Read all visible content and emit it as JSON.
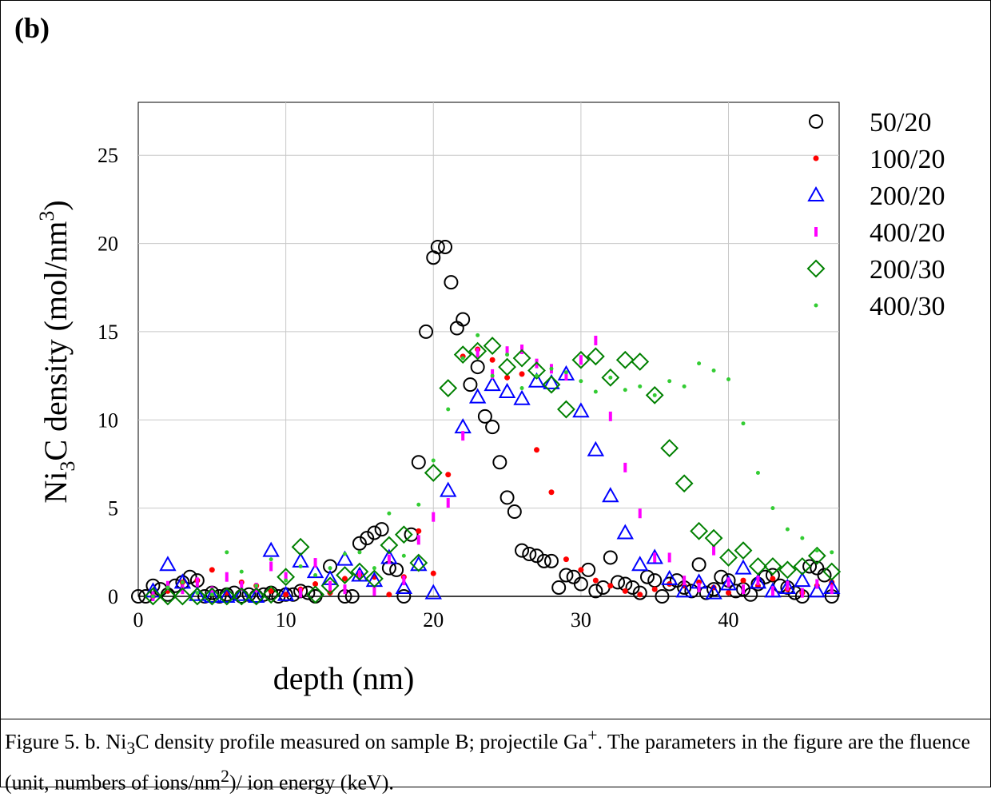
{
  "panel_label": "(b)",
  "chart_data": {
    "type": "scatter",
    "x_label": "depth (nm)",
    "y_label_parts": [
      "Ni",
      "3",
      "C density (mol/nm",
      "3",
      ")"
    ],
    "xlim": [
      0,
      47.5
    ],
    "ylim": [
      0,
      28
    ],
    "xticks": [
      0,
      10,
      20,
      30,
      40
    ],
    "yticks": [
      0,
      5,
      10,
      15,
      20,
      25
    ],
    "grid": true,
    "legend": "right",
    "series": [
      {
        "name": "50/20",
        "color": "#000000",
        "marker": "circle",
        "x": [
          0,
          0.5,
          1,
          1.5,
          2,
          2.5,
          3,
          3.5,
          4,
          4.5,
          5,
          5.5,
          6,
          6.5,
          7,
          7.5,
          8,
          8.5,
          9,
          9.5,
          10,
          10.5,
          11,
          11.5,
          12,
          13,
          14,
          14.5,
          15,
          15.5,
          16,
          16.5,
          17,
          17.5,
          18,
          18.5,
          19,
          19.5,
          20,
          20.3,
          20.8,
          21.2,
          21.6,
          22,
          22.5,
          23,
          23.5,
          24,
          24.5,
          25,
          25.5,
          26,
          26.5,
          27,
          27.5,
          28,
          28.5,
          29,
          29.5,
          30,
          30.5,
          31,
          31.5,
          32,
          32.5,
          33,
          33.5,
          34,
          34.5,
          35,
          35.5,
          36,
          36.5,
          37,
          37.5,
          38,
          38.5,
          39,
          39.5,
          40,
          40.5,
          41,
          41.5,
          42,
          42.5,
          43,
          43.5,
          44,
          44.5,
          45,
          45.5,
          46,
          46.5,
          47
        ],
        "values": [
          0,
          0,
          0.6,
          0.4,
          0.1,
          0.6,
          0.8,
          1.1,
          0.9,
          0,
          0.2,
          0,
          0.1,
          0.2,
          0,
          0.1,
          0,
          0.1,
          0.2,
          0,
          0.1,
          0.1,
          0.3,
          0.2,
          0,
          1.7,
          0,
          0,
          3,
          3.3,
          3.6,
          3.8,
          1.6,
          1.5,
          0,
          3.5,
          7.6,
          15,
          19.2,
          19.8,
          19.8,
          17.8,
          15.2,
          15.7,
          12,
          13,
          10.2,
          9.6,
          7.6,
          5.6,
          4.8,
          2.6,
          2.4,
          2.3,
          2,
          2,
          0.5,
          1.2,
          1.1,
          0.7,
          1.5,
          0.3,
          0.5,
          2.2,
          0.8,
          0.7,
          0.5,
          0.2,
          1.1,
          0.9,
          0,
          0.7,
          0.9,
          0.5,
          0.3,
          1.8,
          0.2,
          0.4,
          1.1,
          0.9,
          0.3,
          0.4,
          0.1,
          0.7,
          1.1,
          1.2,
          0.6,
          0.5,
          0.2,
          0,
          1.7,
          1.6,
          1.2,
          0
        ]
      },
      {
        "name": "100/20",
        "color": "#ff0000",
        "marker": "dot",
        "x": [
          1,
          2,
          3,
          4,
          5,
          6,
          7,
          8,
          9,
          10,
          11,
          12,
          13,
          14,
          15,
          16,
          17,
          18,
          19,
          20,
          21,
          22,
          23,
          24,
          25,
          26,
          27,
          28,
          29,
          30,
          31,
          32,
          33,
          34,
          35,
          36,
          37,
          38,
          39,
          40,
          41,
          42,
          43,
          44,
          45,
          46,
          47
        ],
        "values": [
          0,
          0.3,
          0.8,
          0.9,
          1.5,
          0.2,
          0.8,
          0.6,
          0.3,
          0.1,
          0.4,
          0.7,
          0.2,
          1.0,
          1.2,
          1.1,
          0.1,
          1.1,
          3.7,
          1.3,
          6.9,
          13.6,
          14.0,
          13.4,
          12.4,
          12.6,
          8.3,
          5.9,
          2.1,
          1.5,
          0.9,
          0.6,
          0.3,
          0.1,
          0.4,
          0.7,
          0.6,
          0.8,
          0.5,
          0.2,
          0.9,
          0.6,
          1.0,
          0.4,
          0.2,
          0.6,
          0.8
        ]
      },
      {
        "name": "200/20",
        "color": "#0000ff",
        "marker": "triangle",
        "x": [
          1,
          2,
          3,
          4,
          5,
          6,
          7,
          8,
          9,
          10,
          11,
          12,
          13,
          14,
          15,
          16,
          17,
          18,
          19,
          20,
          21,
          22,
          23,
          24,
          25,
          26,
          27,
          28,
          29,
          30,
          31,
          32,
          33,
          34,
          35,
          36,
          37,
          38,
          39,
          40,
          41,
          42,
          43,
          44,
          45,
          46,
          47
        ],
        "values": [
          0.3,
          1.8,
          0.8,
          0.1,
          0,
          0,
          0.1,
          0,
          2.6,
          0.1,
          2.0,
          1.4,
          1.0,
          2.1,
          1.2,
          0.9,
          2.2,
          0.5,
          1.8,
          0.2,
          6.0,
          9.6,
          11.3,
          12,
          11.6,
          11.2,
          12.2,
          12.1,
          12.6,
          10.5,
          8.3,
          5.7,
          3.6,
          1.8,
          2.2,
          1.0,
          0.3,
          0.8,
          0.2,
          0.7,
          1.6,
          0.8,
          0.3,
          0.5,
          0.9,
          0.3,
          0.5
        ]
      },
      {
        "name": "400/20",
        "color": "#ff00ff",
        "marker": "dash",
        "x": [
          1,
          2,
          3,
          4,
          5,
          6,
          7,
          8,
          9,
          10,
          11,
          12,
          13,
          14,
          15,
          16,
          17,
          18,
          19,
          20,
          21,
          22,
          23,
          24,
          25,
          26,
          27,
          28,
          29,
          30,
          31,
          32,
          33,
          34,
          35,
          36,
          37,
          38,
          39,
          40,
          41,
          42,
          43,
          44,
          45,
          46,
          47
        ],
        "values": [
          0,
          0.6,
          0.4,
          0.8,
          0.3,
          1.1,
          0.6,
          0.5,
          1.7,
          1.1,
          0.2,
          1.9,
          0.6,
          0.4,
          1.2,
          0.3,
          2.1,
          0.9,
          3.2,
          4.5,
          5.3,
          9.1,
          13.8,
          12.6,
          13.9,
          14,
          13.2,
          12.9,
          12.5,
          13.4,
          14.5,
          10.2,
          7.3,
          4.7,
          2.2,
          2.2,
          0.9,
          0.5,
          2.6,
          0.8,
          0.4,
          0.9,
          0.3,
          0.6,
          0.2,
          0.7,
          0.4
        ]
      },
      {
        "name": "200/30",
        "color": "#008000",
        "marker": "diamond",
        "x": [
          1,
          2,
          3,
          4,
          5,
          6,
          7,
          8,
          9,
          10,
          11,
          12,
          13,
          14,
          15,
          16,
          17,
          18,
          19,
          20,
          21,
          22,
          23,
          24,
          25,
          26,
          27,
          28,
          29,
          30,
          31,
          32,
          33,
          34,
          35,
          36,
          37,
          38,
          39,
          40,
          41,
          42,
          43,
          44,
          45,
          46,
          47
        ],
        "values": [
          0,
          0,
          0,
          0,
          0,
          0,
          0,
          0,
          0.1,
          1.1,
          2.8,
          0.1,
          0.6,
          1.2,
          1.4,
          1.0,
          2.9,
          3.5,
          1.9,
          7.0,
          11.8,
          13.7,
          13.9,
          14.2,
          13.0,
          13.5,
          12.8,
          12.0,
          10.6,
          13.4,
          13.6,
          12.4,
          13.4,
          13.3,
          11.4,
          8.4,
          6.4,
          3.7,
          3.3,
          2.2,
          2.6,
          1.7,
          1.7,
          1.5,
          1.7,
          2.3,
          1.4
        ]
      },
      {
        "name": "400/30",
        "color": "#33cc33",
        "marker": "small-dot",
        "x": [
          1,
          2,
          3,
          4,
          5,
          6,
          7,
          8,
          9,
          10,
          11,
          12,
          13,
          14,
          15,
          16,
          17,
          18,
          19,
          20,
          21,
          22,
          23,
          24,
          25,
          26,
          27,
          28,
          29,
          30,
          31,
          32,
          33,
          34,
          35,
          36,
          37,
          38,
          39,
          40,
          41,
          42,
          43,
          44,
          45,
          46,
          47
        ],
        "values": [
          0,
          0.5,
          0.8,
          0.2,
          0.1,
          2.5,
          1.4,
          0.6,
          2.1,
          0.9,
          1.7,
          1.2,
          1.6,
          2.4,
          2.5,
          1.6,
          4.7,
          2.3,
          5.2,
          7.7,
          10.6,
          13.5,
          14.8,
          12.5,
          13.7,
          11.8,
          12.5,
          12.9,
          12.7,
          12.2,
          11.6,
          12.4,
          11.7,
          11.9,
          11.4,
          12.2,
          11.9,
          13.2,
          12.8,
          12.3,
          9.8,
          7.0,
          5.0,
          3.8,
          3.3,
          2.6,
          2.5
        ]
      }
    ]
  },
  "caption_parts": [
    "Figure 5. b. Ni",
    "3",
    "C density profile measured on sample B; projectile Ga",
    "+",
    ". The parameters in the figure are the fluence (unit, numbers of ions/nm",
    "2",
    ")/ ion energy (keV)."
  ]
}
